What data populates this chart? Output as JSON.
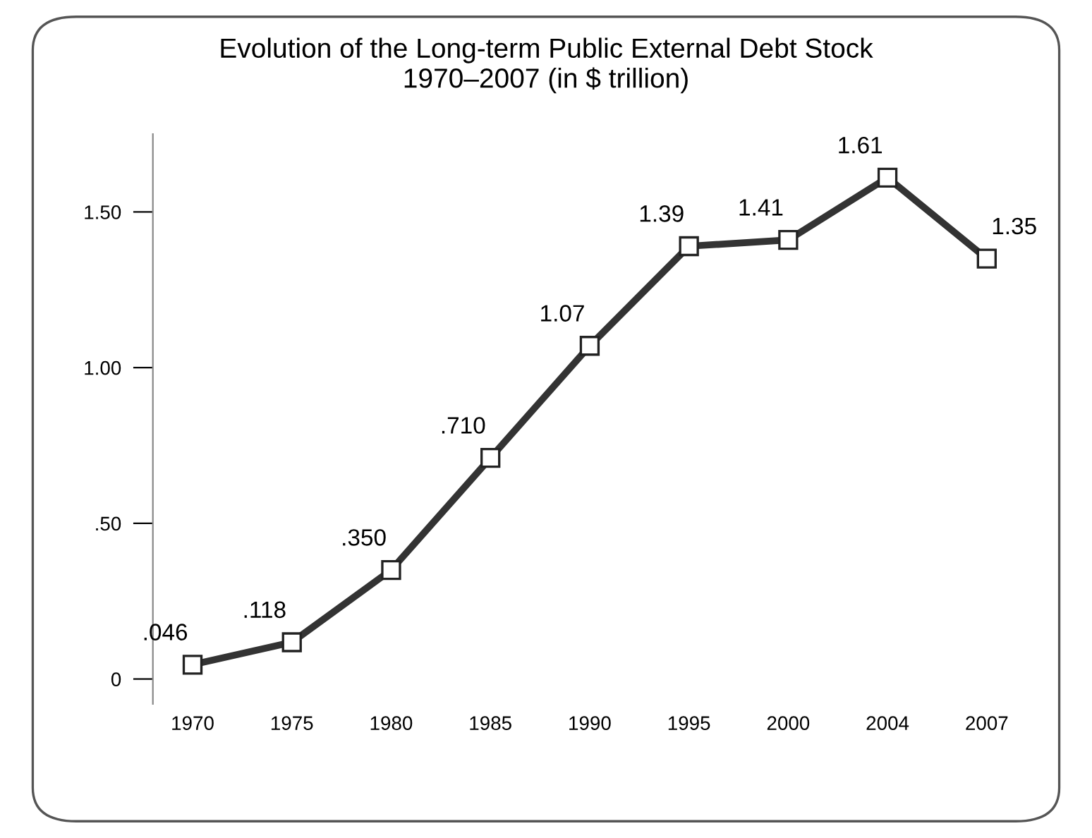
{
  "chart_data": {
    "type": "line",
    "title": "Evolution of the Long-term Public External Debt Stock\n1970–2007 (in $ trillion)",
    "categories": [
      "1970",
      "1975",
      "1980",
      "1985",
      "1990",
      "1995",
      "2000",
      "2004",
      "2007"
    ],
    "series": [
      {
        "color": "#333333",
        "values": [
          0.046,
          0.118,
          0.35,
          0.71,
          1.07,
          1.39,
          1.41,
          1.61,
          1.35
        ],
        "value_labels": [
          ".046",
          ".118",
          ".350",
          ".710",
          "1.07",
          "1.39",
          "1.41",
          "1.61",
          "1.35"
        ]
      }
    ],
    "ylim": [
      -0.08,
      1.75
    ],
    "yticks": [
      0,
      {
        "value": 0.5,
        "label": ".50"
      },
      {
        "value": 1.0,
        "label": "1.00"
      },
      {
        "value": 1.5,
        "label": "1.50"
      }
    ],
    "marker": "square",
    "line_style": "solid",
    "grid": false,
    "legend": false
  }
}
